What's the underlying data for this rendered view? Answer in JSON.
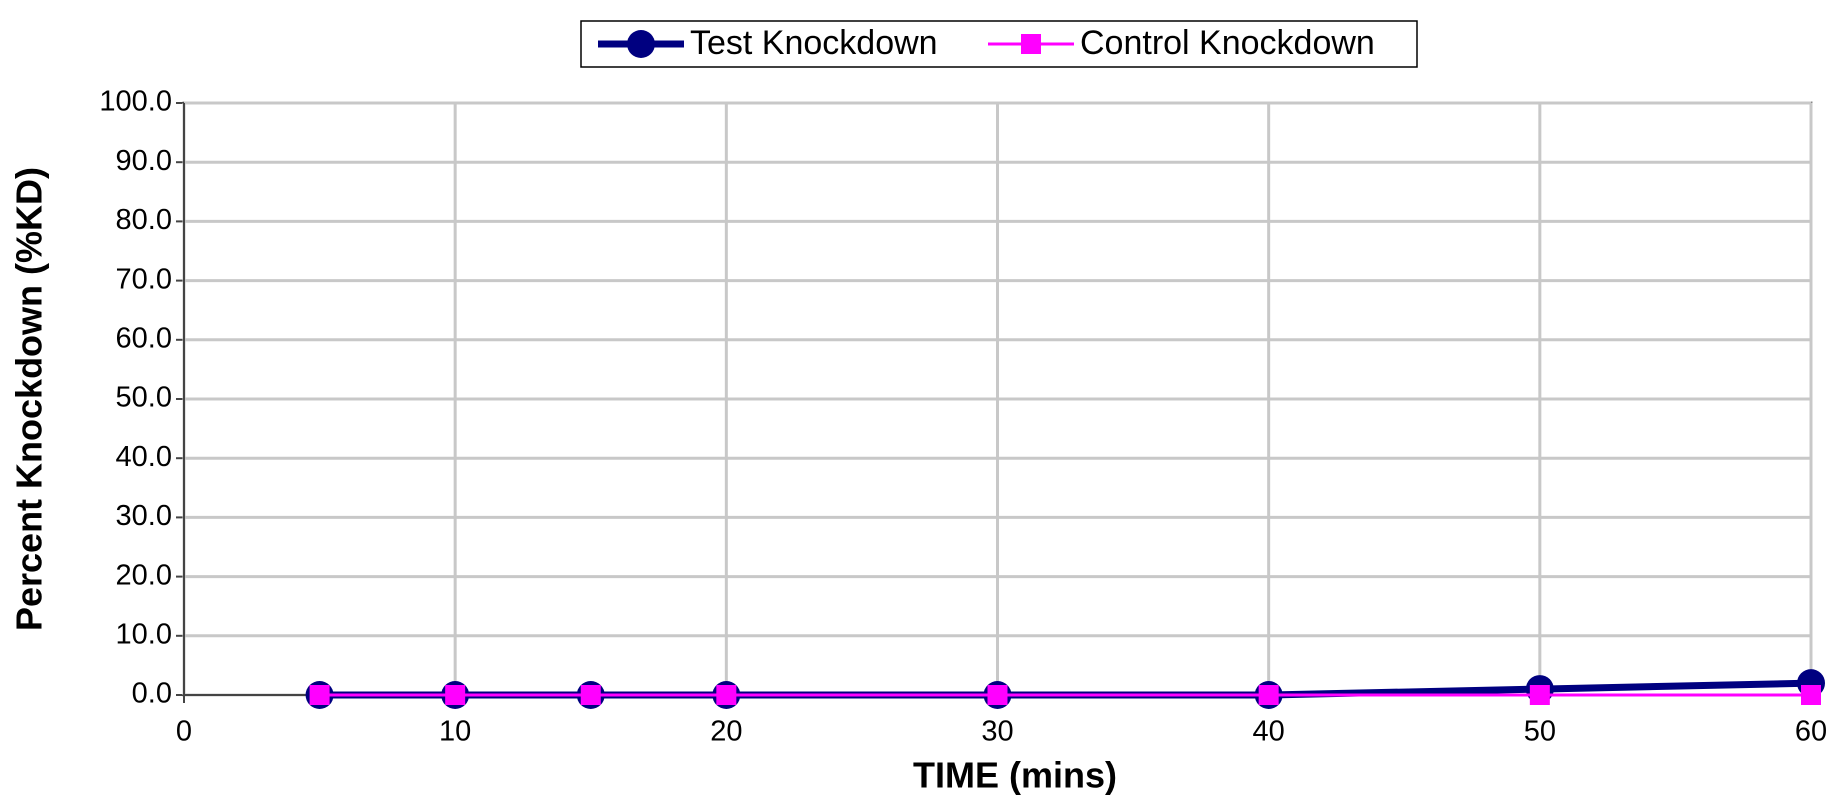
{
  "chart_data": {
    "type": "line",
    "xlabel": "TIME (mins)",
    "ylabel": "Percent Knockdown (%KD)",
    "x": [
      5,
      10,
      15,
      20,
      30,
      40,
      50,
      60
    ],
    "series": [
      {
        "name": "Test Knockdown",
        "color": "#000080",
        "marker": "circle",
        "values": [
          0,
          0,
          0,
          0,
          0,
          0,
          1,
          2
        ]
      },
      {
        "name": "Control Knockdown",
        "color": "#ff00ff",
        "marker": "square",
        "values": [
          0,
          0,
          0,
          0,
          0,
          0,
          0,
          0
        ]
      }
    ],
    "xlim": [
      0,
      60
    ],
    "xticks": [
      0,
      10,
      20,
      30,
      40,
      50,
      60
    ],
    "ylim": [
      0,
      100
    ],
    "yticks": [
      {
        "value": 0,
        "label": "0.0"
      },
      {
        "value": 10,
        "label": "10.0"
      },
      {
        "value": 20,
        "label": "20.0"
      },
      {
        "value": 30,
        "label": "30.0"
      },
      {
        "value": 40,
        "label": "40.0"
      },
      {
        "value": 50,
        "label": "50.0"
      },
      {
        "value": 60,
        "label": "60.0"
      },
      {
        "value": 70,
        "label": "70.0"
      },
      {
        "value": 80,
        "label": "80.0"
      },
      {
        "value": 90,
        "label": "90.0"
      },
      {
        "value": 100,
        "label": "100.0"
      }
    ],
    "grid": true,
    "legend": "top"
  }
}
